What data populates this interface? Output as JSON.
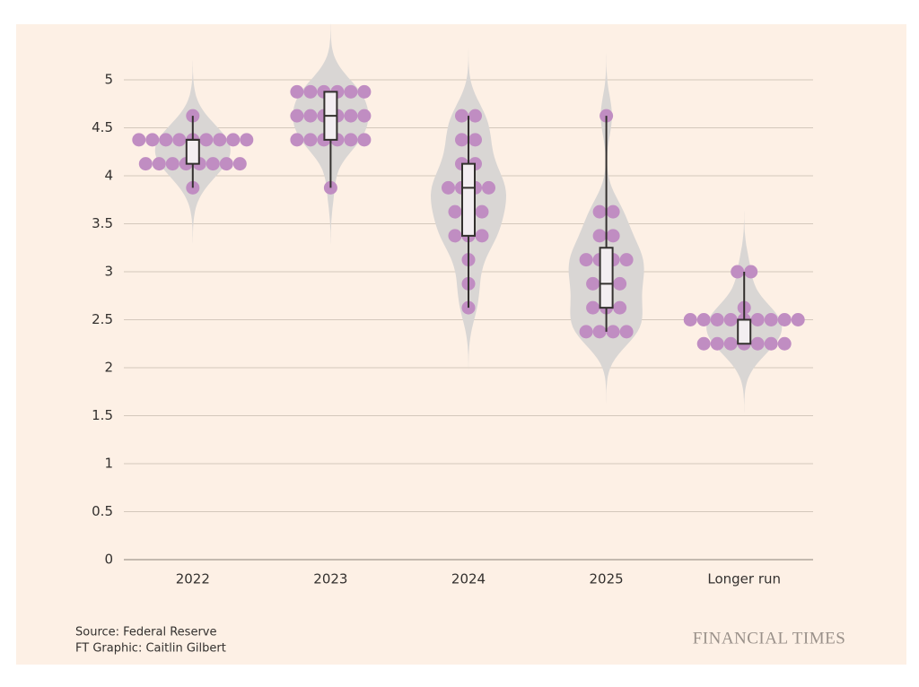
{
  "chart_data": {
    "type": "box",
    "categories": [
      "2022",
      "2023",
      "2024",
      "2025",
      "Longer run"
    ],
    "dots": [
      [
        4.625,
        4.375,
        4.375,
        4.375,
        4.375,
        4.375,
        4.375,
        4.375,
        4.375,
        4.375,
        4.125,
        4.125,
        4.125,
        4.125,
        4.125,
        4.125,
        4.125,
        4.125,
        3.875
      ],
      [
        4.875,
        4.875,
        4.875,
        4.875,
        4.875,
        4.875,
        4.625,
        4.625,
        4.625,
        4.625,
        4.625,
        4.625,
        4.375,
        4.375,
        4.375,
        4.375,
        4.375,
        4.375,
        3.875
      ],
      [
        4.625,
        4.625,
        4.375,
        4.375,
        4.125,
        4.125,
        3.875,
        3.875,
        3.875,
        3.875,
        3.625,
        3.625,
        3.625,
        3.375,
        3.375,
        3.375,
        3.125,
        2.875,
        2.625
      ],
      [
        4.625,
        3.625,
        3.625,
        3.375,
        3.375,
        3.125,
        3.125,
        3.125,
        3.125,
        2.875,
        2.875,
        2.875,
        2.625,
        2.625,
        2.625,
        2.375,
        2.375,
        2.375,
        2.375
      ],
      [
        3.0,
        3.0,
        2.625,
        2.5,
        2.5,
        2.5,
        2.5,
        2.5,
        2.5,
        2.5,
        2.5,
        2.5,
        2.25,
        2.25,
        2.25,
        2.25,
        2.25,
        2.25,
        2.25
      ]
    ],
    "boxes": [
      {
        "low": 3.875,
        "q1": 4.125,
        "median": 4.375,
        "q3": 4.375,
        "high": 4.625
      },
      {
        "low": 3.875,
        "q1": 4.375,
        "median": 4.625,
        "q3": 4.875,
        "high": 4.875
      },
      {
        "low": 2.625,
        "q1": 3.375,
        "median": 3.875,
        "q3": 4.125,
        "high": 4.625
      },
      {
        "low": 2.375,
        "q1": 2.625,
        "median": 2.875,
        "q3": 3.25,
        "high": 4.625
      },
      {
        "low": 2.25,
        "q1": 2.25,
        "median": 2.5,
        "q3": 2.5,
        "high": 3.0
      }
    ],
    "dot_color": "#c08dc2",
    "violin_color": "#d9d6d4",
    "box_color": "#f3eef1",
    "ylim": [
      0,
      5
    ],
    "yticks": [
      0,
      0.5,
      1,
      1.5,
      2,
      2.5,
      3,
      3.5,
      4,
      4.5,
      5
    ],
    "grid": true,
    "source": "Source: Federal Reserve",
    "credit": "FT Graphic: Caitlin Gilbert",
    "brand": "FINANCIAL TIMES"
  }
}
